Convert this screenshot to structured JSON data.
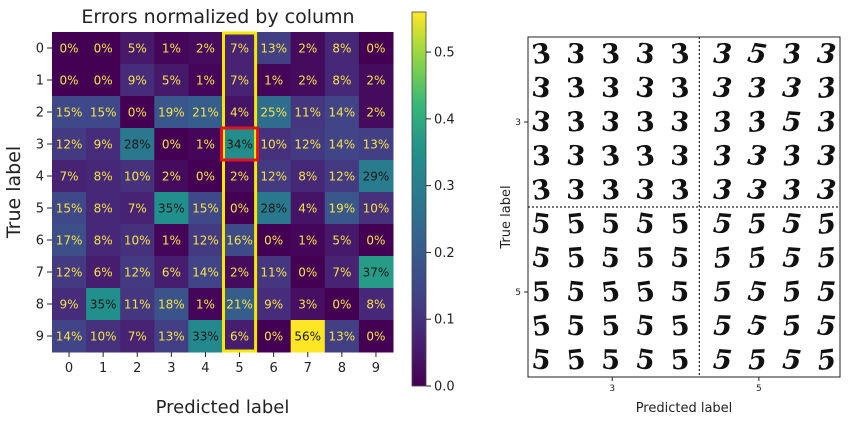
{
  "chart_data": [
    {
      "type": "heatmap",
      "title": "Errors normalized by column",
      "xlabel": "Predicted label",
      "ylabel": "True label",
      "x_categories": [
        "0",
        "1",
        "2",
        "3",
        "4",
        "5",
        "6",
        "7",
        "8",
        "9"
      ],
      "y_categories": [
        "0",
        "1",
        "2",
        "3",
        "4",
        "5",
        "6",
        "7",
        "8",
        "9"
      ],
      "values": [
        [
          0,
          0,
          5,
          1,
          2,
          7,
          13,
          2,
          8,
          0
        ],
        [
          0,
          0,
          9,
          5,
          1,
          7,
          1,
          2,
          8,
          2
        ],
        [
          15,
          15,
          0,
          19,
          21,
          4,
          25,
          11,
          14,
          2
        ],
        [
          12,
          9,
          28,
          0,
          1,
          34,
          10,
          12,
          14,
          13
        ],
        [
          7,
          8,
          10,
          2,
          0,
          2,
          12,
          8,
          12,
          29
        ],
        [
          15,
          8,
          7,
          35,
          15,
          0,
          28,
          4,
          19,
          10
        ],
        [
          17,
          8,
          10,
          1,
          12,
          16,
          0,
          1,
          5,
          0
        ],
        [
          12,
          6,
          12,
          6,
          14,
          2,
          11,
          0,
          7,
          37
        ],
        [
          9,
          35,
          11,
          18,
          1,
          21,
          9,
          3,
          0,
          8
        ],
        [
          14,
          10,
          7,
          13,
          33,
          6,
          0,
          56,
          13,
          0
        ]
      ],
      "cell_labels": [
        [
          "0%",
          "0%",
          "5%",
          "1%",
          "2%",
          "7%",
          "13%",
          "2%",
          "8%",
          "0%"
        ],
        [
          "0%",
          "0%",
          "9%",
          "5%",
          "1%",
          "7%",
          "1%",
          "2%",
          "8%",
          "2%"
        ],
        [
          "15%",
          "15%",
          "0%",
          "19%",
          "21%",
          "4%",
          "25%",
          "11%",
          "14%",
          "2%"
        ],
        [
          "12%",
          "9%",
          "28%",
          "0%",
          "1%",
          "34%",
          "10%",
          "12%",
          "14%",
          "13%"
        ],
        [
          "7%",
          "8%",
          "10%",
          "2%",
          "0%",
          "2%",
          "12%",
          "8%",
          "12%",
          "29%"
        ],
        [
          "15%",
          "8%",
          "7%",
          "35%",
          "15%",
          "0%",
          "28%",
          "4%",
          "19%",
          "10%"
        ],
        [
          "17%",
          "8%",
          "10%",
          "1%",
          "12%",
          "16%",
          "0%",
          "1%",
          "5%",
          "0%"
        ],
        [
          "12%",
          "6%",
          "12%",
          "6%",
          "14%",
          "2%",
          "11%",
          "0%",
          "7%",
          "37%"
        ],
        [
          "9%",
          "35%",
          "11%",
          "18%",
          "1%",
          "21%",
          "9%",
          "3%",
          "0%",
          "8%"
        ],
        [
          "14%",
          "10%",
          "7%",
          "13%",
          "33%",
          "6%",
          "0%",
          "56%",
          "13%",
          "0%"
        ]
      ],
      "colormap": "viridis",
      "colorbar_ticks": [
        "0.0",
        "0.1",
        "0.2",
        "0.3",
        "0.4",
        "0.5"
      ],
      "colorbar_range": [
        0,
        0.56
      ],
      "highlight_column": 5,
      "highlight_column_color": "#f5e800",
      "highlight_cell": {
        "row": 3,
        "col": 5
      },
      "highlight_cell_color": "#e0141e"
    },
    {
      "type": "image-grid",
      "xlabel": "Predicted label",
      "ylabel": "True label",
      "x_ticks": [
        "3",
        "5"
      ],
      "y_ticks": [
        "3",
        "5"
      ],
      "grid_rows": [
        [
          "3",
          "3",
          "3",
          "3",
          "3",
          "3",
          "5",
          "3",
          "3"
        ],
        [
          "3",
          "3",
          "3",
          "3",
          "3",
          "3",
          "3",
          "3",
          "3"
        ],
        [
          "3",
          "3",
          "3",
          "3",
          "3",
          "3",
          "3",
          "5",
          "3"
        ],
        [
          "3",
          "3",
          "3",
          "3",
          "3",
          "3",
          "3",
          "3",
          "3"
        ],
        [
          "3",
          "3",
          "3",
          "3",
          "3",
          "3",
          "3",
          "3",
          "3"
        ],
        [
          "5",
          "5",
          "5",
          "5",
          "5",
          "5",
          "5",
          "5",
          "5"
        ],
        [
          "5",
          "5",
          "5",
          "5",
          "5",
          "5",
          "5",
          "5",
          "5"
        ],
        [
          "5",
          "5",
          "5",
          "5",
          "5",
          "5",
          "5",
          "5",
          "5"
        ],
        [
          "5",
          "5",
          "5",
          "5",
          "5",
          "5",
          "5",
          "5",
          "5"
        ],
        [
          "5",
          "5",
          "5",
          "5",
          "5",
          "5",
          "5",
          "5",
          "5"
        ]
      ]
    }
  ]
}
